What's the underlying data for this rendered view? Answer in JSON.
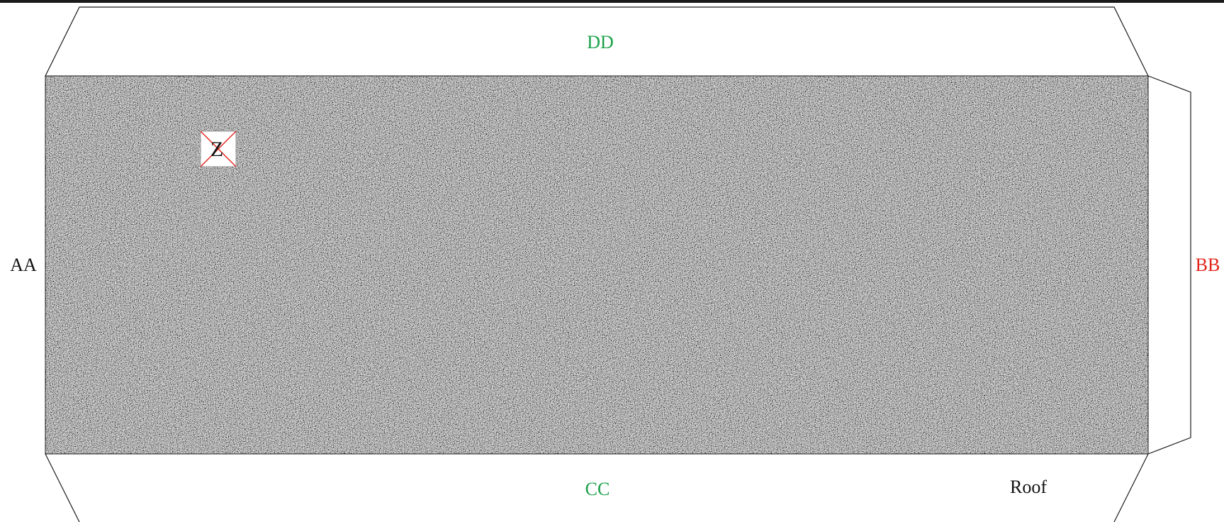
{
  "labels": {
    "left": "AA",
    "right": "BB",
    "bottom": "CC",
    "top": "DD",
    "corner": "Roof",
    "marker": "Z"
  },
  "colors": {
    "top_label": "#1aa14a",
    "bottom_label": "#1aa14a",
    "right_label": "#e2231a",
    "left_label": "#111111",
    "corner_label": "#111111",
    "outline": "#1a1a1a",
    "marker_cross": "#e2231a",
    "texture_dark": "#2b2b2b",
    "texture_light": "#e6e6e6"
  },
  "icons": {
    "marker": "crossed-box-icon"
  }
}
